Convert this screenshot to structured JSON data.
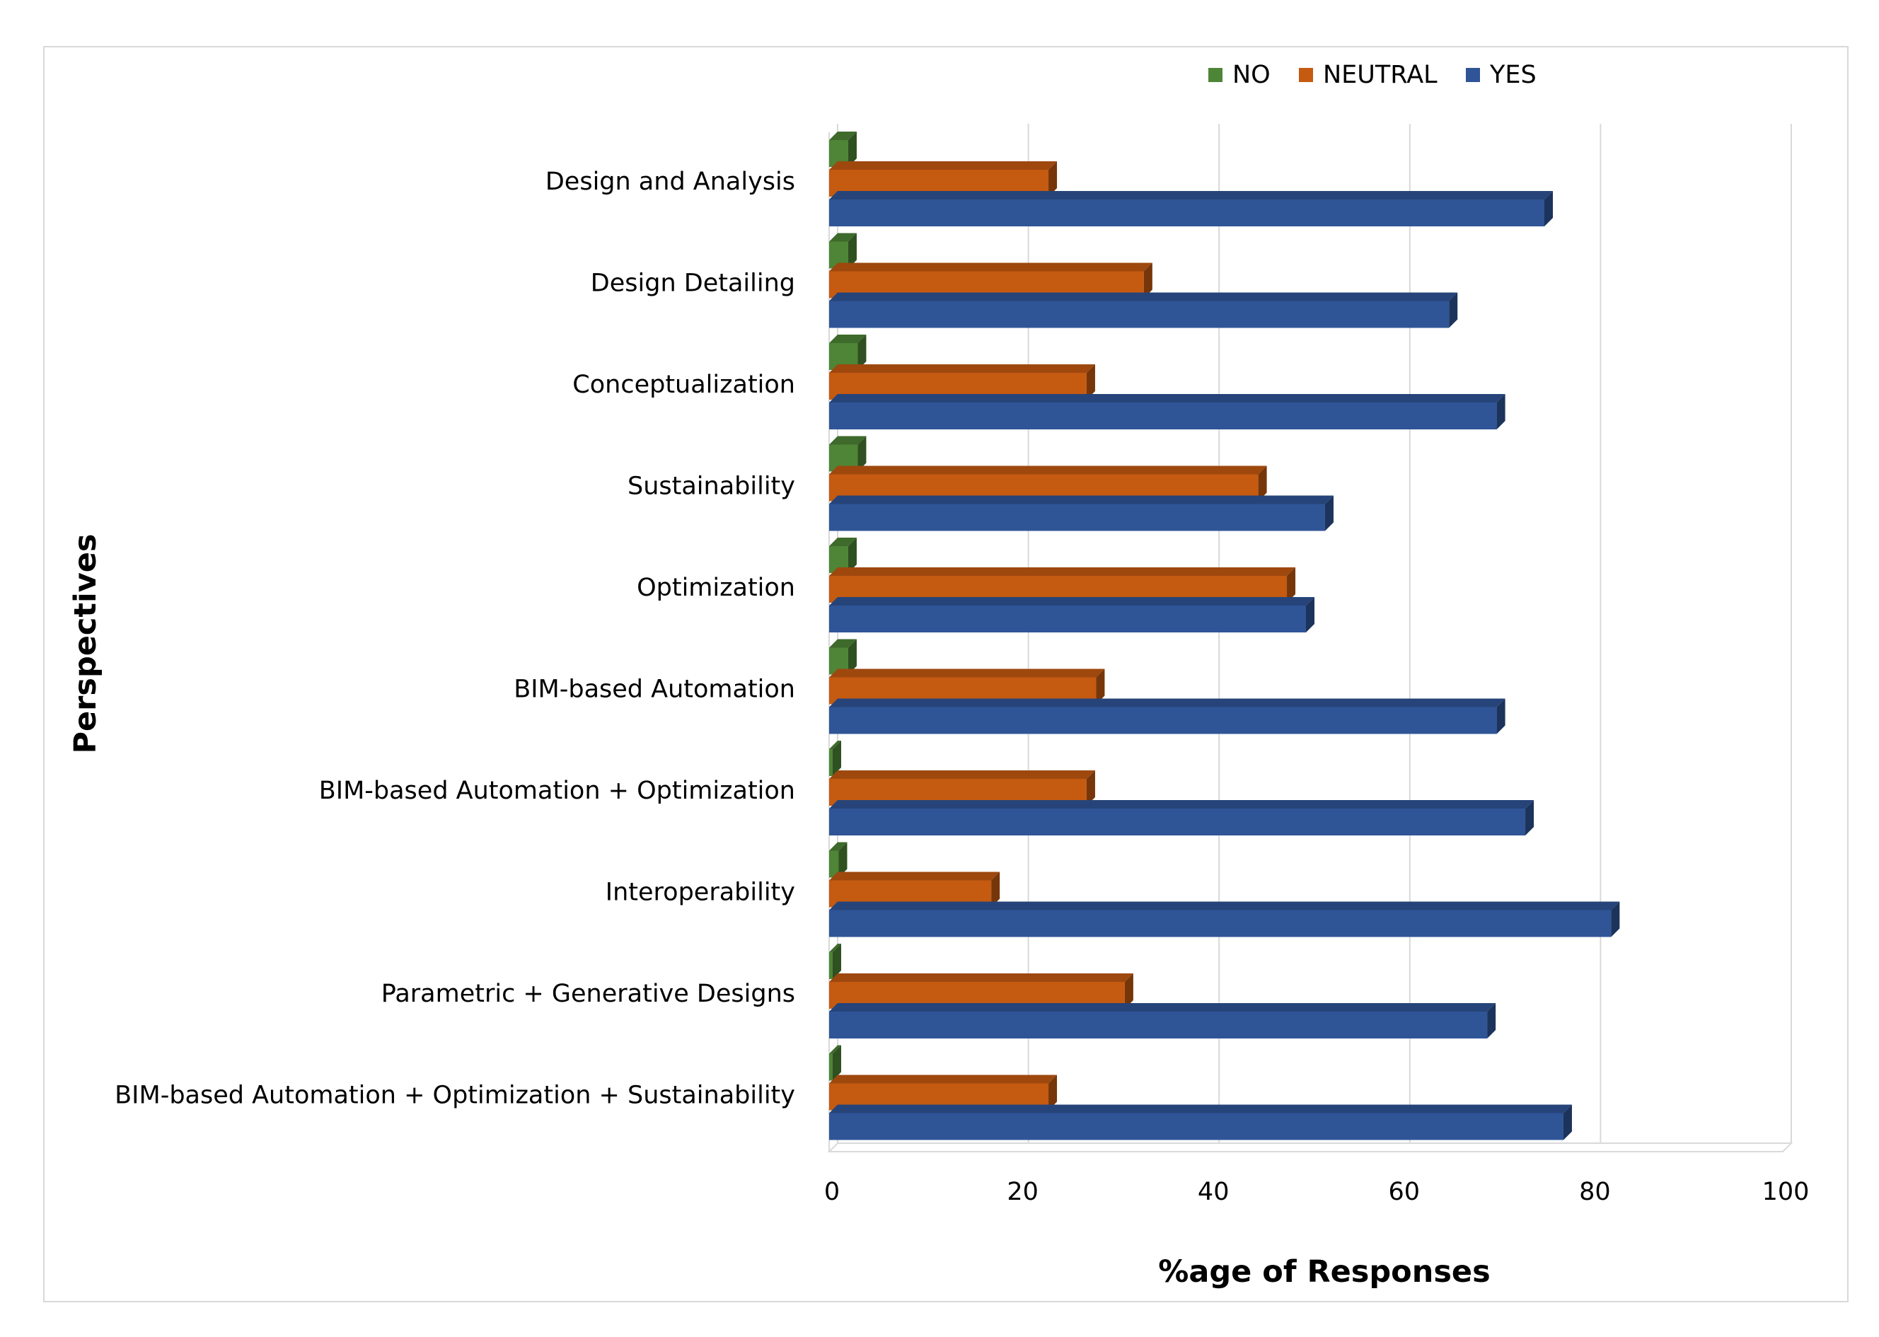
{
  "chart_data": {
    "type": "bar",
    "orientation": "horizontal",
    "style": "3d-clustered",
    "xlabel": "%age of Responses",
    "ylabel": "Perspectives",
    "xlim": [
      0,
      100
    ],
    "xticks": [
      "0",
      "20",
      "40",
      "60",
      "80",
      "100"
    ],
    "grid": true,
    "legend_position": "top",
    "categories": [
      "Design and Analysis",
      "Design Detailing",
      "Conceptualization",
      "Sustainability",
      "Optimization",
      "BIM-based Automation",
      "BIM-based Automation + Optimization",
      "Interoperability",
      "Parametric + Generative Designs",
      "BIM-based Automation + Optimization + Sustainability"
    ],
    "series": [
      {
        "name": "NO",
        "color": "#4e8536",
        "values": [
          2,
          2,
          3,
          3,
          2,
          2,
          0,
          1,
          0,
          0
        ]
      },
      {
        "name": "NEUTRAL",
        "color": "#c55a11",
        "values": [
          23,
          33,
          27,
          45,
          48,
          28,
          27,
          17,
          31,
          23
        ]
      },
      {
        "name": "YES",
        "color": "#2f5597",
        "values": [
          75,
          65,
          70,
          52,
          50,
          70,
          73,
          82,
          69,
          77
        ]
      }
    ]
  }
}
